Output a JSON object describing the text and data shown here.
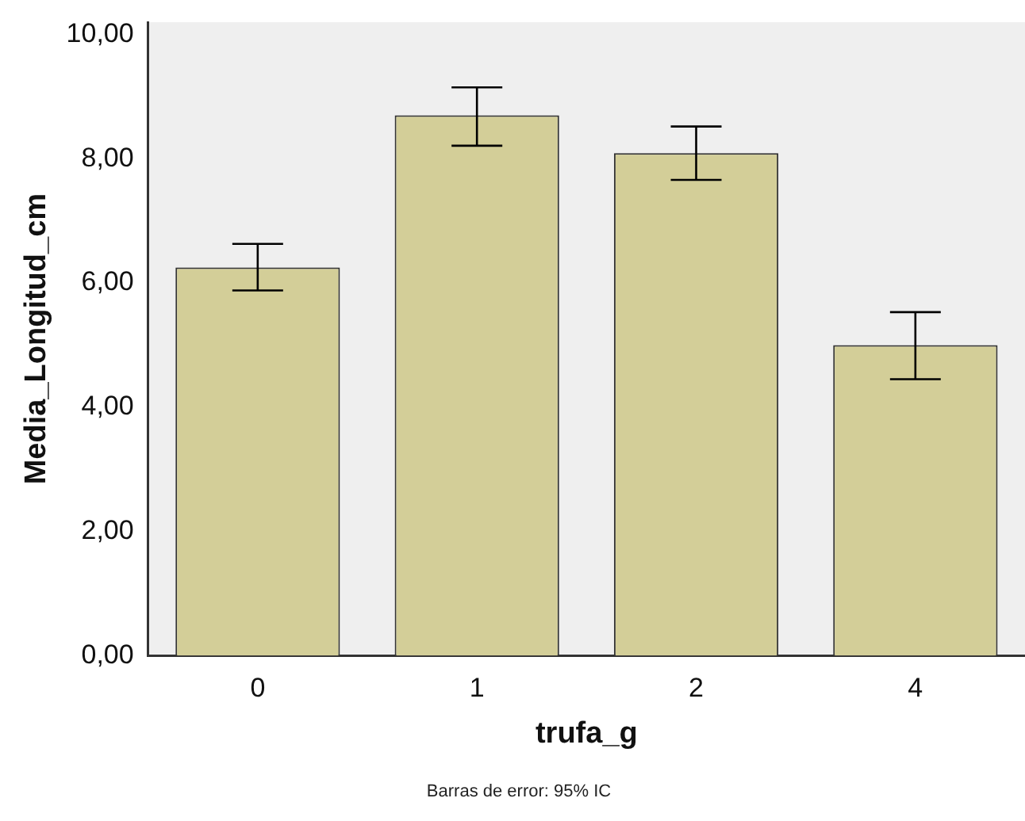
{
  "chart_data": {
    "type": "bar",
    "xlabel": "trufa_g",
    "ylabel": "Media_Longitud_cm",
    "categories": [
      "0",
      "1",
      "2",
      "4"
    ],
    "values": [
      6.25,
      8.7,
      8.09,
      5.0
    ],
    "errors": [
      [
        5.88,
        6.63
      ],
      [
        8.21,
        9.15
      ],
      [
        7.66,
        8.52
      ],
      [
        4.45,
        5.53
      ]
    ],
    "color": "#d3ce98",
    "ylim": [
      0,
      10.2
    ],
    "yticks": [
      {
        "value": 0,
        "label": "0,00"
      },
      {
        "value": 2,
        "label": "2,00"
      },
      {
        "value": 4,
        "label": "4,00"
      },
      {
        "value": 6,
        "label": "6,00"
      },
      {
        "value": 8,
        "label": "8,00"
      },
      {
        "value": 10,
        "label": "10,00"
      }
    ],
    "grid": false,
    "annotations": [
      "Barras de error: 95% IC"
    ]
  }
}
